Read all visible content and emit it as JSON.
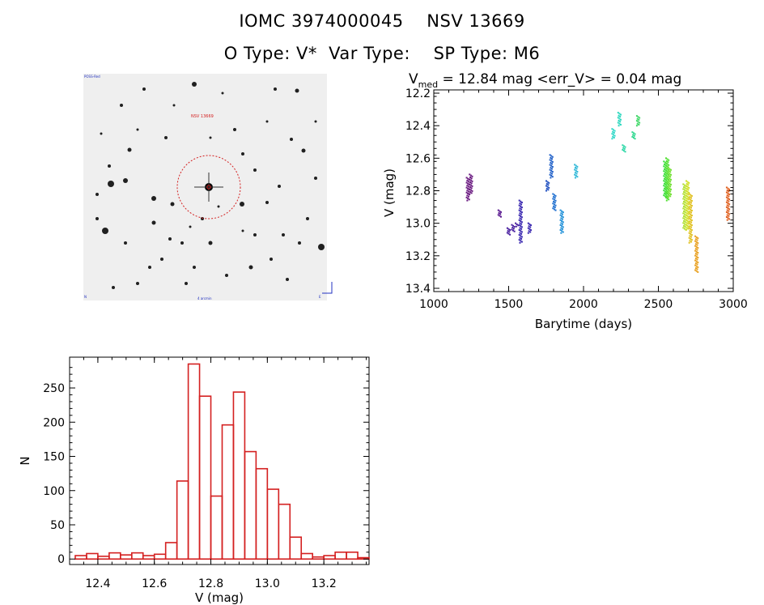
{
  "header": {
    "title_line1": "IOMC 3974000045    NSV 13669",
    "title_line2": "O Type: V*  Var Type:    SP Type: M6"
  },
  "image_panel": {
    "label_top_left": "POSS-Red",
    "label_center": "NSV 13669",
    "label_bottom": "4 arcmin",
    "label_bottom_left": "N",
    "label_bottom_right": "E"
  },
  "colors": {
    "histogram": "#d42020",
    "axes": "#000000",
    "circle": "#d42020"
  },
  "chart_data": [
    {
      "id": "light_curve",
      "type": "scatter",
      "title_prefix": "V",
      "title_subscript": "med",
      "title_rest": " = 12.84 mag <err_V> = 0.04 mag",
      "xlabel": "Barytime (days)",
      "ylabel": "V (mag)",
      "xlim": [
        1000,
        3000
      ],
      "ylim": [
        13.42,
        12.18
      ],
      "xticks": [
        1000,
        1500,
        2000,
        2500,
        3000
      ],
      "yticks": [
        12.2,
        12.4,
        12.6,
        12.8,
        13.0,
        13.2,
        13.4
      ],
      "ytick_labels": [
        "12.2",
        "12.4",
        "12.6",
        "12.8",
        "13.0",
        "13.2",
        "13.4"
      ],
      "clusters": [
        {
          "x": 1228,
          "y0": 12.72,
          "y1": 12.86,
          "color": "#6a1a80"
        },
        {
          "x": 1248,
          "y0": 12.7,
          "y1": 12.82,
          "color": "#6a1a80"
        },
        {
          "x": 1440,
          "y0": 12.92,
          "y1": 12.96,
          "color": "#5a1a90"
        },
        {
          "x": 1500,
          "y0": 13.03,
          "y1": 13.07,
          "color": "#4a20a0"
        },
        {
          "x": 1530,
          "y0": 13.01,
          "y1": 13.05,
          "color": "#4a20a0"
        },
        {
          "x": 1555,
          "y0": 13.0,
          "y1": 13.02,
          "color": "#4a20a0"
        },
        {
          "x": 1580,
          "y0": 12.86,
          "y1": 13.12,
          "color": "#3a28b0"
        },
        {
          "x": 1640,
          "y0": 13.0,
          "y1": 13.06,
          "color": "#3a28b0"
        },
        {
          "x": 1760,
          "y0": 12.74,
          "y1": 12.8,
          "color": "#2050c0"
        },
        {
          "x": 1785,
          "y0": 12.58,
          "y1": 12.72,
          "color": "#2060c8"
        },
        {
          "x": 1805,
          "y0": 12.82,
          "y1": 12.92,
          "color": "#2070d0"
        },
        {
          "x": 1855,
          "y0": 12.92,
          "y1": 13.06,
          "color": "#2090d8"
        },
        {
          "x": 1950,
          "y0": 12.64,
          "y1": 12.72,
          "color": "#30b8d8"
        },
        {
          "x": 2200,
          "y0": 12.42,
          "y1": 12.48,
          "color": "#30d8c8"
        },
        {
          "x": 2240,
          "y0": 12.32,
          "y1": 12.4,
          "color": "#30d8c0"
        },
        {
          "x": 2270,
          "y0": 12.52,
          "y1": 12.56,
          "color": "#30d8a8"
        },
        {
          "x": 2335,
          "y0": 12.44,
          "y1": 12.48,
          "color": "#30d890"
        },
        {
          "x": 2365,
          "y0": 12.34,
          "y1": 12.4,
          "color": "#40d868"
        },
        {
          "x": 2545,
          "y0": 12.62,
          "y1": 12.84,
          "color": "#40e040"
        },
        {
          "x": 2560,
          "y0": 12.6,
          "y1": 12.86,
          "color": "#50e030"
        },
        {
          "x": 2575,
          "y0": 12.66,
          "y1": 12.84,
          "color": "#70e030"
        },
        {
          "x": 2675,
          "y0": 12.76,
          "y1": 13.04,
          "color": "#b0e030"
        },
        {
          "x": 2695,
          "y0": 12.74,
          "y1": 13.04,
          "color": "#d0e020"
        },
        {
          "x": 2715,
          "y0": 12.82,
          "y1": 13.12,
          "color": "#e0c020"
        },
        {
          "x": 2755,
          "y0": 13.08,
          "y1": 13.3,
          "color": "#e8a020"
        },
        {
          "x": 2965,
          "y0": 12.78,
          "y1": 12.98,
          "color": "#e06020"
        }
      ]
    },
    {
      "id": "histogram",
      "type": "bar",
      "xlabel": "V (mag)",
      "ylabel": "N",
      "xlim": [
        12.3,
        13.36
      ],
      "ylim": [
        -8,
        295
      ],
      "xticks": [
        12.4,
        12.6,
        12.8,
        13.0,
        13.2
      ],
      "xtick_labels": [
        "12.4",
        "12.6",
        "12.8",
        "13.0",
        "13.2"
      ],
      "yticks": [
        0,
        50,
        100,
        150,
        200,
        250
      ],
      "bin_width": 0.04,
      "bin_start": 12.32,
      "values": [
        5,
        8,
        4,
        9,
        6,
        9,
        5,
        7,
        24,
        114,
        285,
        238,
        92,
        196,
        244,
        157,
        132,
        102,
        80,
        32,
        8,
        3,
        5,
        10,
        10,
        2
      ]
    }
  ]
}
